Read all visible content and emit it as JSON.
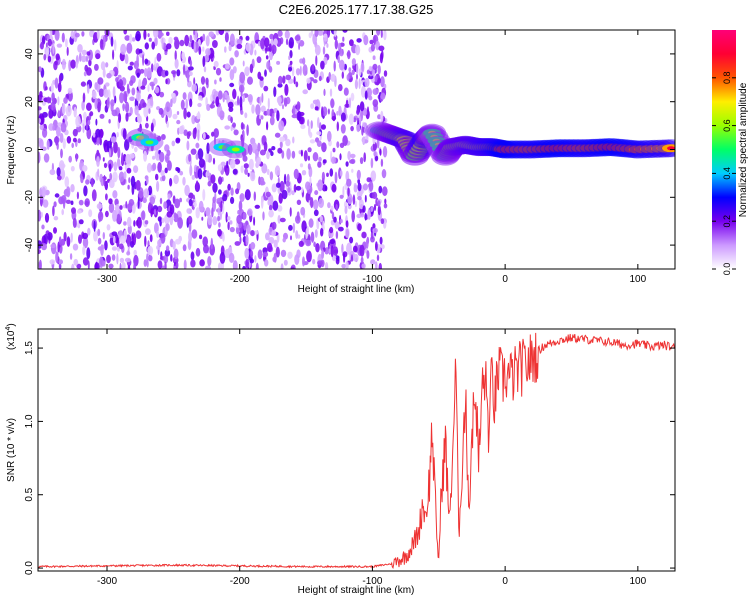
{
  "title": "C2E6.2025.177.17.38.G25",
  "colorbar": {
    "label": "Normalized spectral amplitude",
    "ticks": [
      "0.0",
      "0.2",
      "0.4",
      "0.6",
      "0.8"
    ],
    "tick_values": [
      0.0,
      0.2,
      0.4,
      0.6,
      0.8
    ],
    "range": [
      0.0,
      1.0
    ],
    "colormap": [
      "#ffffff",
      "#cc99ff",
      "#7700ee",
      "#0000ff",
      "#00ccff",
      "#00ff66",
      "#99ff00",
      "#ffee00",
      "#ff5500",
      "#ff0033",
      "#ff0077"
    ]
  },
  "chart_data": [
    {
      "type": "heatmap",
      "xlabel": "Height of straight line (km)",
      "ylabel": "Frequency (Hz)",
      "xlim": [
        -352,
        128
      ],
      "ylim": [
        -50,
        50
      ],
      "xticks": [
        -300,
        -200,
        -100,
        0,
        100
      ],
      "xtick_labels": [
        "-300",
        "-200",
        "-100",
        "0",
        "100"
      ],
      "yticks": [
        -40,
        -20,
        0,
        20,
        40
      ],
      "ytick_labels": [
        "-40",
        "-20",
        "0",
        "20",
        "40"
      ],
      "grid": false,
      "noise_region_x": [
        -352,
        -90
      ],
      "noise_level": 0.15,
      "ridge": [
        {
          "x": -95,
          "y": 8,
          "amp": 0.45
        },
        {
          "x": -85,
          "y": 6,
          "amp": 0.6
        },
        {
          "x": -75,
          "y": 4,
          "amp": 0.7
        },
        {
          "x": -68,
          "y": -3,
          "amp": 0.55
        },
        {
          "x": -60,
          "y": 4,
          "amp": 0.75
        },
        {
          "x": -55,
          "y": 7,
          "amp": 0.5
        },
        {
          "x": -45,
          "y": -3,
          "amp": 0.5
        },
        {
          "x": -40,
          "y": 1,
          "amp": 0.6
        },
        {
          "x": -30,
          "y": 2,
          "amp": 0.65
        },
        {
          "x": -20,
          "y": 1,
          "amp": 0.7
        },
        {
          "x": -10,
          "y": 1,
          "amp": 0.75
        },
        {
          "x": 0,
          "y": 0,
          "amp": 0.85
        },
        {
          "x": 20,
          "y": 0,
          "amp": 0.8
        },
        {
          "x": 40,
          "y": 0.5,
          "amp": 0.85
        },
        {
          "x": 60,
          "y": 0.5,
          "amp": 0.8
        },
        {
          "x": 80,
          "y": 1,
          "amp": 0.85
        },
        {
          "x": 100,
          "y": 0,
          "amp": 0.8
        },
        {
          "x": 125,
          "y": 0.5,
          "amp": 0.75
        }
      ],
      "early_features": [
        {
          "x": -275,
          "y": 5,
          "amp": 0.45
        },
        {
          "x": -268,
          "y": 3,
          "amp": 0.4
        },
        {
          "x": -213,
          "y": 1,
          "amp": 0.4
        },
        {
          "x": -203,
          "y": 0,
          "amp": 0.45
        }
      ]
    },
    {
      "type": "line",
      "xlabel": "Height of straight line (km)",
      "ylabel": "SNR (10 * v/v)",
      "y_multiplier_label": "(x10",
      "y_multiplier_exponent": "4",
      "y_multiplier_close": ")",
      "xlim": [
        -352,
        128
      ],
      "ylim": [
        -0.02,
        1.63
      ],
      "xticks": [
        -300,
        -200,
        -100,
        0,
        100
      ],
      "xtick_labels": [
        "-300",
        "-200",
        "-100",
        "0",
        "100"
      ],
      "yticks": [
        0.0,
        0.5,
        1.0,
        1.5
      ],
      "ytick_labels": [
        "0.0",
        "0.5",
        "1.0",
        "1.5"
      ],
      "grid": false,
      "color": "#ee3333",
      "series": [
        {
          "x": [
            -352,
            -300,
            -250,
            -200,
            -150,
            -120,
            -100,
            -85,
            -75,
            -70,
            -65,
            -62,
            -60,
            -57,
            -55,
            -52,
            -50,
            -48,
            -45,
            -42,
            -40,
            -37,
            -35,
            -32,
            -30,
            -27,
            -25,
            -22,
            -20,
            -17,
            -15,
            -12,
            -10,
            -8,
            -5,
            -2,
            0,
            5,
            10,
            15,
            20,
            25,
            30,
            40,
            50,
            60,
            70,
            80,
            90,
            100,
            110,
            120,
            128
          ],
          "y": [
            0.01,
            0.015,
            0.02,
            0.015,
            0.01,
            0.01,
            0.01,
            0.03,
            0.08,
            0.15,
            0.25,
            0.45,
            0.35,
            0.6,
            0.95,
            0.3,
            0.05,
            0.55,
            0.85,
            0.3,
            0.7,
            1.38,
            0.2,
            0.8,
            1.15,
            0.4,
            0.95,
            1.2,
            0.7,
            1.25,
            1.3,
            0.9,
            1.35,
            1.1,
            1.35,
            1.28,
            1.32,
            1.3,
            1.35,
            1.38,
            1.42,
            1.48,
            1.52,
            1.55,
            1.57,
            1.56,
            1.55,
            1.54,
            1.52,
            1.53,
            1.51,
            1.52,
            1.5
          ]
        }
      ]
    }
  ]
}
